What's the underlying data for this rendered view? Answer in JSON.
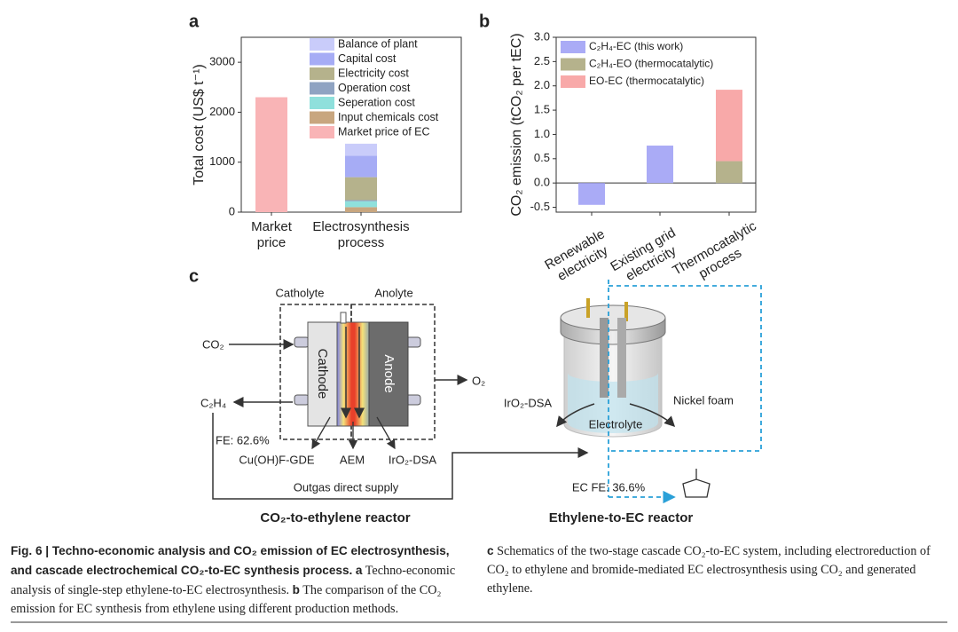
{
  "chart_data": [
    {
      "type": "bar",
      "label": "a",
      "stacked": true,
      "ylabel": "Total cost (US$ t⁻¹)",
      "categories": [
        "Market price",
        "Electrosynthesis process"
      ],
      "series": [
        {
          "name": "Balance of plant",
          "color": "#c9ccfa",
          "values": [
            null,
            240
          ]
        },
        {
          "name": "Capital cost",
          "color": "#a6acf5",
          "values": [
            null,
            430
          ]
        },
        {
          "name": "Electricity cost",
          "color": "#b5b28c",
          "values": [
            null,
            460
          ]
        },
        {
          "name": "Operation cost",
          "color": "#8fa3c2",
          "values": [
            null,
            20
          ]
        },
        {
          "name": "Seperation cost",
          "color": "#8fe0dc",
          "values": [
            null,
            120
          ]
        },
        {
          "name": "Input chemicals cost",
          "color": "#c8a67f",
          "values": [
            null,
            100
          ]
        },
        {
          "name": "Market price of EC",
          "color": "#f9b4b6",
          "values": [
            2300,
            null
          ]
        }
      ],
      "ylim": [
        0,
        3500
      ],
      "yticks": [
        0,
        1000,
        2000,
        3000
      ],
      "legend": "upper right"
    },
    {
      "type": "bar",
      "label": "b",
      "stacked": true,
      "ylabel": "CO₂ emission (tCO₂ per tEC)",
      "categories": [
        "Renewable electricity",
        "Existing grid electricity",
        "Thermocatalytic process"
      ],
      "series": [
        {
          "name": "C₂H₄-EC (this work)",
          "color": "#aaabf6",
          "values": [
            -0.45,
            0.77,
            null
          ]
        },
        {
          "name": "C₂H₄-EO (thermocatalytic)",
          "color": "#b5b28c",
          "values": [
            null,
            null,
            0.45
          ]
        },
        {
          "name": "EO-EC (thermocatalytic)",
          "color": "#f8a9a9",
          "values": [
            null,
            null,
            1.47
          ]
        }
      ],
      "ylim": [
        -0.6,
        3.0
      ],
      "yticks": [
        {
          "value": -0.5,
          "label": "-0.5"
        },
        {
          "value": 0,
          "label": "0.0"
        },
        0.5,
        {
          "value": 1,
          "label": "1.0"
        },
        1.5,
        {
          "value": 2,
          "label": "2.0"
        },
        2.5,
        {
          "value": 3,
          "label": "3.0"
        }
      ],
      "legend": "upper left"
    }
  ],
  "diagram": {
    "label": "c",
    "catholyte": "Catholyte",
    "anolyte": "Anolyte",
    "cathode": "Cathode",
    "anode": "Anode",
    "co2": "CO₂",
    "c2h4": "C₂H₄",
    "o2": "O₂",
    "fe1": "FE: 62.6%",
    "gde": "Cu(OH)F-GDE",
    "aem": "AEM",
    "dsa1": "IrO₂-DSA",
    "outgas": "Outgas direct supply",
    "reactor1": "CO₂-to-ethylene reactor",
    "dsa2": "IrO₂-DSA",
    "nickel": "Nickel foam",
    "electrolyte": "Electrolyte",
    "fe2": "EC FE: 36.6%",
    "reactor2": "Ethylene-to-EC reactor"
  },
  "caption": {
    "left_bold": "Fig. 6 | Techno-economic analysis and CO₂ emission of EC electrosynthesis, and cascade electrochemical CO₂-to-EC synthesis process.",
    "left_a": "a",
    "left_a_text": "Techno-economic analysis of single-step ethylene-to-EC electrosynthesis.",
    "left_b": "b",
    "left_b_text": "The comparison of the CO₂ emission for EC synthesis from ethylene using different production methods.",
    "right_c": "c",
    "right_text": "Schematics of the two-stage cascade CO₂-to-EC system, including electroreduction of CO₂ to ethylene and bromide-mediated EC electrosynthesis using CO₂ and generated ethylene."
  }
}
